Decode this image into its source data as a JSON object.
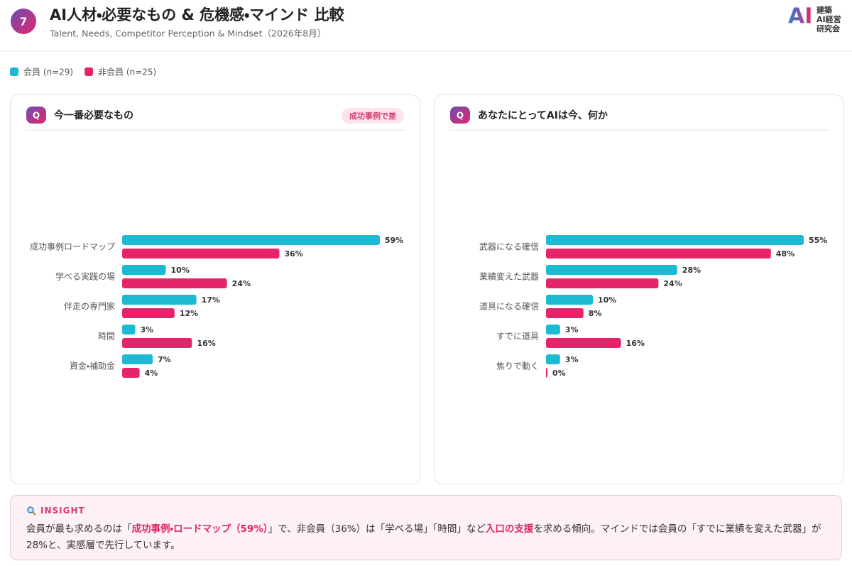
{
  "header": {
    "badge": "7",
    "title": "AI人材・必要なもの & 危機感・マインド 比較",
    "subtitle": "Talent, Needs, Competitor Perception & Mindset（2026年8月）",
    "logo": {
      "mark": "AI",
      "lines": [
        "建築",
        "AI経営",
        "研究会"
      ]
    }
  },
  "chart_data": [
    {
      "type": "bar",
      "orientation": "horizontal",
      "icon": "Q",
      "title": "今一番必要なもの",
      "tag": "成功事例で差",
      "categories": [
        "成功事例ロードマップ",
        "学べる実践の場",
        "伴走の専門家",
        "時間",
        "資金・補助金"
      ],
      "series": [
        {
          "name": "会員 (n=29)",
          "color": "#1cb9d3",
          "values": [
            59,
            10,
            17,
            3,
            7
          ],
          "value_labels": [
            "59%",
            "10%",
            "17%",
            "3%",
            "7%"
          ]
        },
        {
          "name": "非会員 (n=25)",
          "color": "#e5246b",
          "values": [
            36,
            24,
            12,
            16,
            4
          ],
          "value_labels": [
            "36%",
            "24%",
            "12%",
            "16%",
            "4%"
          ]
        }
      ]
    },
    {
      "type": "bar",
      "orientation": "horizontal",
      "icon": "Q",
      "title": "あなたにとってAIは今、何か",
      "categories": [
        "武器になる確信",
        "業績変えた武器",
        "道具になる確信",
        "すでに道具",
        "焦りで動く"
      ],
      "series": [
        {
          "name": "会員 (n=29)",
          "color": "#1cb9d3",
          "values": [
            55,
            28,
            10,
            3,
            3
          ],
          "value_labels": [
            "55%",
            "28%",
            "10%",
            "3%",
            "3%"
          ]
        },
        {
          "name": "非会員 (n=25)",
          "color": "#e5246b",
          "values": [
            48,
            24,
            8,
            16,
            0
          ],
          "value_labels": [
            "48%",
            "24%",
            "8%",
            "16%",
            "0%"
          ]
        }
      ]
    }
  ],
  "insight": {
    "label": "INSIGHT",
    "body": [
      {
        "text": "会員が最も求めるのは「",
        "highlight": false
      },
      {
        "text": "成功事例・ロードマップ（59%）",
        "highlight": true
      },
      {
        "text": "」で、非会員（36%）は「学べる場」「時間」など",
        "highlight": false
      },
      {
        "text": "入口の支援",
        "highlight": true
      },
      {
        "text": "を求める傾向。マインドでは会員の「すでに業績を変えた武器」が28%と、実感層で先行しています。",
        "highlight": false
      }
    ]
  }
}
